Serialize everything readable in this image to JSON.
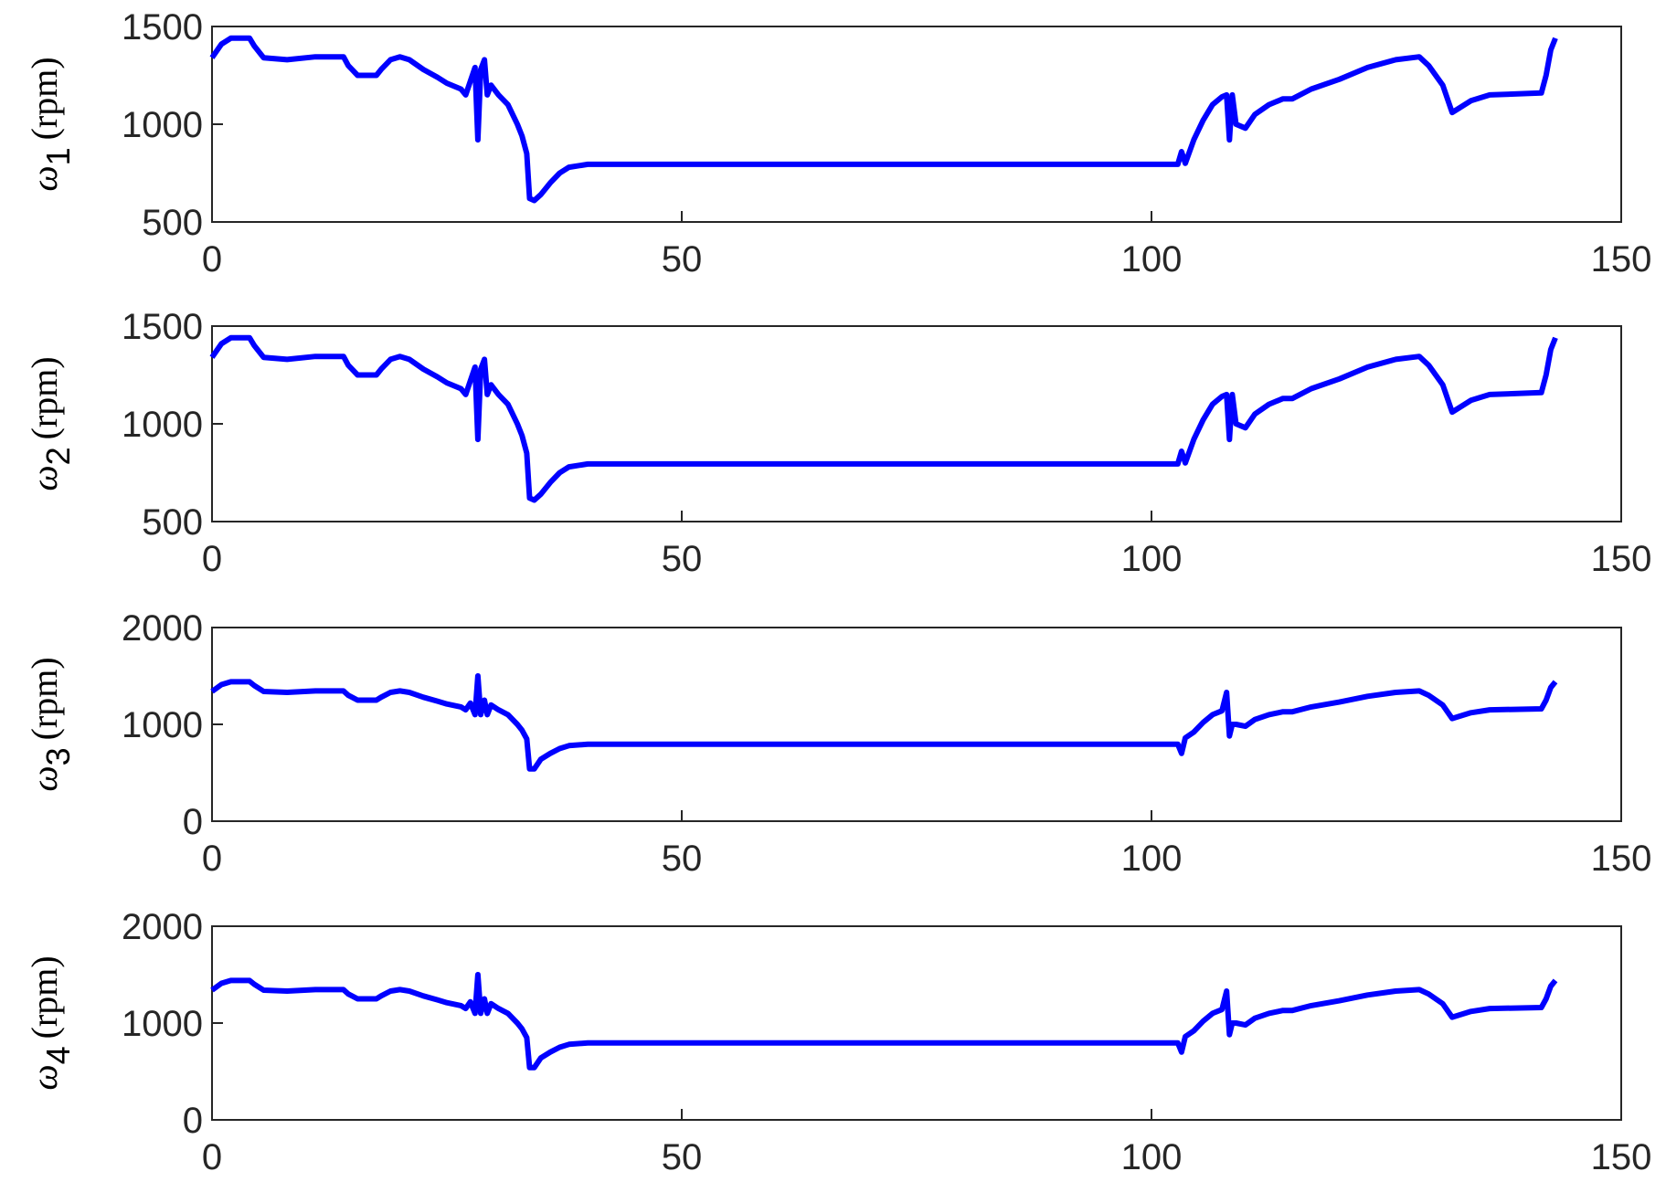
{
  "chart_data": [
    {
      "type": "line",
      "ylabel": [
        "ω",
        "1",
        "(rpm)"
      ],
      "color": "#0000ff",
      "x": [
        0,
        1,
        2,
        4,
        4.5,
        5.5,
        8,
        11,
        14,
        14.5,
        15.5,
        17.5,
        18,
        19,
        20,
        21,
        22.5,
        24,
        25,
        26.5,
        27,
        27.5,
        28,
        28.3,
        28.6,
        29,
        29.3,
        29.7,
        30.5,
        31.5,
        32.5,
        33,
        33.5,
        33.8,
        34.3,
        35,
        36,
        37,
        38,
        40,
        102.8,
        103.2,
        103.6,
        104.5,
        105.5,
        106.5,
        107.5,
        108,
        108.3,
        108.6,
        109,
        110,
        111,
        112.5,
        114,
        115,
        117,
        120,
        123,
        126,
        128.5,
        129.5,
        131,
        132,
        134,
        136,
        141.5,
        142,
        142.5,
        143
      ],
      "values": [
        1340,
        1410,
        1440,
        1440,
        1400,
        1340,
        1330,
        1345,
        1345,
        1300,
        1250,
        1250,
        1280,
        1330,
        1345,
        1330,
        1280,
        1240,
        1210,
        1180,
        1150,
        1220,
        1290,
        920,
        1280,
        1330,
        1150,
        1200,
        1150,
        1100,
        1000,
        940,
        850,
        620,
        610,
        640,
        700,
        750,
        780,
        795,
        795,
        860,
        800,
        920,
        1020,
        1100,
        1140,
        1150,
        920,
        1150,
        1000,
        980,
        1050,
        1100,
        1130,
        1130,
        1180,
        1230,
        1290,
        1330,
        1345,
        1300,
        1200,
        1060,
        1120,
        1150,
        1160,
        1250,
        1380,
        1440
      ],
      "xlim": [
        0,
        150
      ],
      "xticks": [
        0,
        50,
        100,
        150
      ],
      "ylim": [
        500,
        1500
      ],
      "yticks": [
        500,
        1000,
        1500
      ]
    },
    {
      "type": "line",
      "ylabel": [
        "ω",
        "2",
        "(rpm)"
      ],
      "color": "#0000ff",
      "x": [
        0,
        1,
        2,
        4,
        4.5,
        5.5,
        8,
        11,
        14,
        14.5,
        15.5,
        17.5,
        18,
        19,
        20,
        21,
        22.5,
        24,
        25,
        26.5,
        27,
        27.5,
        28,
        28.3,
        28.6,
        29,
        29.3,
        29.7,
        30.5,
        31.5,
        32.5,
        33,
        33.5,
        33.8,
        34.3,
        35,
        36,
        37,
        38,
        40,
        102.8,
        103.2,
        103.6,
        104.5,
        105.5,
        106.5,
        107.5,
        108,
        108.3,
        108.6,
        109,
        110,
        111,
        112.5,
        114,
        115,
        117,
        120,
        123,
        126,
        128.5,
        129.5,
        131,
        132,
        134,
        136,
        141.5,
        142,
        142.5,
        143
      ],
      "values": [
        1340,
        1410,
        1440,
        1440,
        1400,
        1340,
        1330,
        1345,
        1345,
        1300,
        1250,
        1250,
        1280,
        1330,
        1345,
        1330,
        1280,
        1240,
        1210,
        1180,
        1150,
        1220,
        1290,
        920,
        1280,
        1330,
        1150,
        1200,
        1150,
        1100,
        1000,
        940,
        850,
        620,
        610,
        640,
        700,
        750,
        780,
        795,
        795,
        860,
        800,
        920,
        1020,
        1100,
        1140,
        1150,
        920,
        1150,
        1000,
        980,
        1050,
        1100,
        1130,
        1130,
        1180,
        1230,
        1290,
        1330,
        1345,
        1300,
        1200,
        1060,
        1120,
        1150,
        1160,
        1250,
        1380,
        1440
      ],
      "xlim": [
        0,
        150
      ],
      "xticks": [
        0,
        50,
        100,
        150
      ],
      "ylim": [
        500,
        1500
      ],
      "yticks": [
        500,
        1000,
        1500
      ]
    },
    {
      "type": "line",
      "ylabel": [
        "ω",
        "3",
        "(rpm)"
      ],
      "color": "#0000ff",
      "x": [
        0,
        1,
        2,
        4,
        4.5,
        5.5,
        8,
        11,
        14,
        14.5,
        15.5,
        17.5,
        18,
        19,
        20,
        21,
        22.5,
        24,
        25,
        26.5,
        27,
        27.5,
        28,
        28.3,
        28.6,
        29,
        29.3,
        29.7,
        30.5,
        31.5,
        32.5,
        33,
        33.5,
        33.8,
        34.3,
        35,
        36,
        37,
        38,
        40,
        102.8,
        103.2,
        103.6,
        104.5,
        105.5,
        106.5,
        107.5,
        108,
        108.3,
        108.6,
        109,
        110,
        111,
        112.5,
        114,
        115,
        117,
        120,
        123,
        126,
        128.5,
        129.5,
        131,
        132,
        134,
        136,
        141.5,
        142,
        142.5,
        143
      ],
      "values": [
        1340,
        1410,
        1440,
        1440,
        1400,
        1340,
        1330,
        1345,
        1345,
        1300,
        1250,
        1250,
        1280,
        1330,
        1345,
        1330,
        1280,
        1240,
        1210,
        1180,
        1150,
        1220,
        1100,
        1500,
        1100,
        1250,
        1100,
        1200,
        1150,
        1100,
        1000,
        940,
        850,
        540,
        540,
        640,
        700,
        750,
        780,
        795,
        795,
        700,
        860,
        920,
        1020,
        1100,
        1140,
        1330,
        880,
        1000,
        1000,
        980,
        1050,
        1100,
        1130,
        1130,
        1180,
        1230,
        1290,
        1330,
        1345,
        1300,
        1200,
        1060,
        1120,
        1150,
        1160,
        1250,
        1380,
        1440
      ],
      "xlim": [
        0,
        150
      ],
      "xticks": [
        0,
        50,
        100,
        150
      ],
      "ylim": [
        0,
        2000
      ],
      "yticks": [
        0,
        1000,
        2000
      ]
    },
    {
      "type": "line",
      "ylabel": [
        "ω",
        "4",
        "(rpm)"
      ],
      "color": "#0000ff",
      "x": [
        0,
        1,
        2,
        4,
        4.5,
        5.5,
        8,
        11,
        14,
        14.5,
        15.5,
        17.5,
        18,
        19,
        20,
        21,
        22.5,
        24,
        25,
        26.5,
        27,
        27.5,
        28,
        28.3,
        28.6,
        29,
        29.3,
        29.7,
        30.5,
        31.5,
        32.5,
        33,
        33.5,
        33.8,
        34.3,
        35,
        36,
        37,
        38,
        40,
        102.8,
        103.2,
        103.6,
        104.5,
        105.5,
        106.5,
        107.5,
        108,
        108.3,
        108.6,
        109,
        110,
        111,
        112.5,
        114,
        115,
        117,
        120,
        123,
        126,
        128.5,
        129.5,
        131,
        132,
        134,
        136,
        141.5,
        142,
        142.5,
        143
      ],
      "values": [
        1340,
        1410,
        1440,
        1440,
        1400,
        1340,
        1330,
        1345,
        1345,
        1300,
        1250,
        1250,
        1280,
        1330,
        1345,
        1330,
        1280,
        1240,
        1210,
        1180,
        1150,
        1220,
        1100,
        1500,
        1100,
        1250,
        1100,
        1200,
        1150,
        1100,
        1000,
        940,
        850,
        540,
        540,
        640,
        700,
        750,
        780,
        795,
        795,
        700,
        860,
        920,
        1020,
        1100,
        1140,
        1330,
        880,
        1000,
        1000,
        980,
        1050,
        1100,
        1130,
        1130,
        1180,
        1230,
        1290,
        1330,
        1345,
        1300,
        1200,
        1060,
        1120,
        1150,
        1160,
        1250,
        1380,
        1440
      ],
      "xlim": [
        0,
        150
      ],
      "xticks": [
        0,
        50,
        100,
        150
      ],
      "ylim": [
        0,
        2000
      ],
      "yticks": [
        0,
        1000,
        2000
      ]
    }
  ]
}
